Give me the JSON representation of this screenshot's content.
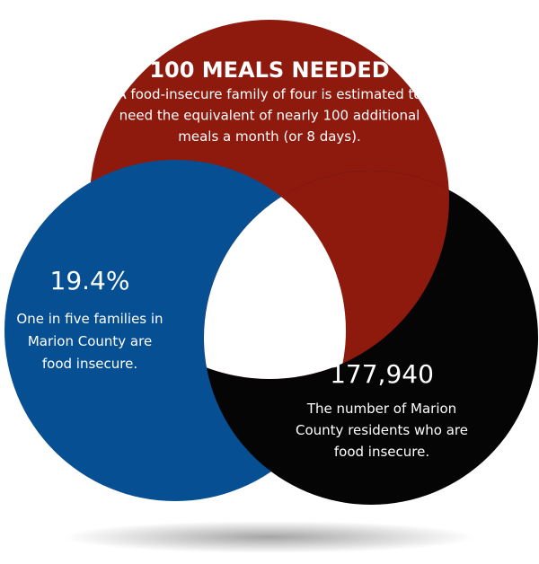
{
  "nodes": [
    {
      "headline": "100 MEALS NEEDED",
      "lines": [
        "A food-insecure family of four is estimated to",
        "need the equivalent of nearly 100 additional",
        "meals a month (or 8 days)."
      ]
    },
    {
      "headline": "19.4%",
      "lines": [
        "One in five families in",
        "Marion County are",
        "food insecure."
      ]
    },
    {
      "headline": "177,940",
      "lines": [
        "The number of Marion",
        "County residents who are",
        "food insecure."
      ]
    }
  ]
}
